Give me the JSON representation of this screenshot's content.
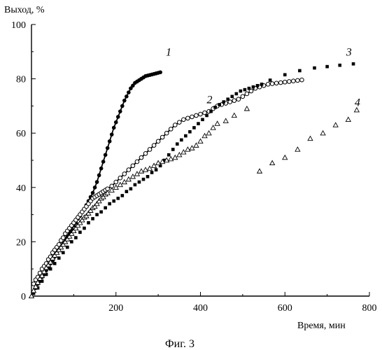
{
  "chart_data": {
    "type": "scatter",
    "title": "",
    "ylabel": "Выход, %",
    "xlabel": "Время, мин",
    "caption": "Фиг. 3",
    "xlim": [
      0,
      800
    ],
    "ylim": [
      0,
      100
    ],
    "x_ticks": [
      "200",
      "400",
      "600",
      "800"
    ],
    "y_ticks": [
      "0",
      "20",
      "40",
      "60",
      "80",
      "100"
    ],
    "grid": false,
    "series": [
      {
        "label_text": "1",
        "marker": "filled-circle",
        "color": "#000000",
        "x": [
          5,
          10,
          15,
          20,
          25,
          30,
          35,
          40,
          45,
          50,
          55,
          60,
          65,
          70,
          75,
          80,
          85,
          90,
          95,
          100,
          105,
          110,
          115,
          120,
          125,
          130,
          135,
          140,
          145,
          150,
          155,
          160,
          165,
          170,
          175,
          180,
          185,
          190,
          195,
          200,
          205,
          210,
          215,
          220,
          225,
          230,
          235,
          240,
          245,
          250,
          255,
          260,
          265,
          270,
          275,
          280,
          285,
          290,
          295,
          300,
          305
        ],
        "y": [
          1.5,
          3,
          4.5,
          5.5,
          7,
          8,
          9.5,
          10.5,
          12,
          13,
          14.5,
          16,
          17,
          18.5,
          19.5,
          21,
          22,
          23.5,
          24.5,
          26,
          27,
          28.5,
          29.5,
          31,
          32,
          33.5,
          35,
          36.5,
          38,
          40,
          42,
          44.5,
          47,
          49.5,
          52,
          54.5,
          57,
          59.5,
          62,
          64,
          66,
          68,
          70,
          72,
          73.5,
          75,
          76.5,
          77.5,
          78.5,
          79,
          79.5,
          80,
          80.5,
          81,
          81.2,
          81.4,
          81.6,
          81.8,
          82,
          82.2,
          82.4
        ]
      },
      {
        "label_text": "2",
        "marker": "open-circle",
        "color": "#000000",
        "x": [
          5,
          10,
          15,
          20,
          25,
          30,
          35,
          40,
          45,
          50,
          55,
          60,
          65,
          70,
          75,
          80,
          85,
          90,
          95,
          100,
          105,
          110,
          115,
          120,
          125,
          130,
          135,
          140,
          145,
          150,
          155,
          160,
          165,
          170,
          175,
          180,
          190,
          200,
          210,
          220,
          230,
          240,
          250,
          260,
          270,
          280,
          290,
          300,
          310,
          320,
          330,
          340,
          350,
          360,
          370,
          380,
          390,
          400,
          410,
          420,
          430,
          440,
          450,
          460,
          470,
          480,
          490,
          500,
          510,
          520,
          530,
          540,
          550,
          560,
          570,
          580,
          590,
          600,
          610,
          620,
          630,
          640
        ],
        "y": [
          4.5,
          6,
          7,
          8.5,
          10,
          11,
          12,
          13.5,
          14.5,
          16,
          17,
          18,
          19,
          20.5,
          21.5,
          23,
          24,
          25,
          26,
          27,
          28,
          29,
          30,
          31,
          32,
          33,
          34,
          35,
          36,
          36.5,
          37,
          37.5,
          38,
          38.5,
          39,
          39.5,
          40.5,
          42,
          43.5,
          45,
          46.5,
          48,
          49.5,
          51,
          52.5,
          54,
          55.5,
          57,
          58.5,
          60,
          61.5,
          63,
          64,
          65,
          65.5,
          66,
          66.5,
          67,
          67.5,
          68,
          69,
          70,
          70.5,
          71,
          71.5,
          72,
          72.5,
          73.5,
          74.5,
          75.5,
          76.5,
          77,
          77.5,
          78,
          78.2,
          78.4,
          78.6,
          78.8,
          79,
          79.2,
          79.4,
          79.6
        ]
      },
      {
        "label_text": "3",
        "marker": "filled-square",
        "color": "#000000",
        "x": [
          5,
          15,
          25,
          35,
          45,
          55,
          65,
          75,
          85,
          95,
          105,
          115,
          125,
          135,
          145,
          155,
          165,
          175,
          185,
          195,
          205,
          215,
          225,
          235,
          245,
          255,
          265,
          275,
          285,
          295,
          305,
          315,
          325,
          335,
          345,
          355,
          365,
          375,
          385,
          395,
          405,
          415,
          425,
          435,
          445,
          455,
          465,
          475,
          485,
          495,
          505,
          515,
          525,
          535,
          545,
          565,
          600,
          635,
          670,
          700,
          730,
          762
        ],
        "y": [
          1,
          3,
          5.5,
          8,
          10,
          12,
          14,
          16,
          18,
          20,
          21.5,
          23.5,
          25,
          27,
          28.5,
          30,
          31,
          32.5,
          34,
          35,
          36,
          37,
          38.5,
          39.5,
          41,
          42,
          43,
          44,
          45.5,
          46.5,
          48,
          50,
          52,
          54,
          56,
          57.5,
          59,
          60.5,
          62,
          63.5,
          65,
          66.5,
          68,
          69.5,
          70.5,
          71.5,
          72.5,
          73.5,
          74.5,
          75.5,
          76,
          76.5,
          77,
          77.5,
          78,
          79.5,
          81.5,
          83,
          84,
          84.5,
          85,
          85.5
        ]
      },
      {
        "label_text": "4",
        "marker": "open-triangle",
        "color": "#000000",
        "x": [
          0,
          5,
          10,
          15,
          20,
          25,
          30,
          35,
          40,
          45,
          50,
          55,
          60,
          65,
          70,
          75,
          80,
          85,
          90,
          95,
          100,
          105,
          110,
          115,
          120,
          125,
          130,
          135,
          140,
          145,
          150,
          155,
          160,
          165,
          170,
          175,
          180,
          190,
          200,
          210,
          220,
          230,
          240,
          250,
          260,
          270,
          280,
          290,
          300,
          310,
          320,
          330,
          340,
          350,
          360,
          370,
          380,
          390,
          400,
          410,
          420,
          430,
          440,
          460,
          480,
          510,
          540,
          570,
          600,
          630,
          660,
          690,
          720,
          750,
          770
        ],
        "y": [
          0,
          2,
          3.5,
          5,
          6.5,
          7.5,
          9,
          10.5,
          11.5,
          12.5,
          14,
          15,
          16,
          17,
          18,
          19,
          20,
          21,
          22,
          23,
          24,
          25,
          26,
          27,
          28,
          29,
          29.5,
          30.5,
          31.5,
          32.5,
          33,
          34,
          35,
          36,
          36.5,
          37.5,
          38,
          39,
          40,
          41,
          42,
          43,
          44,
          45,
          46,
          46.5,
          47,
          48,
          49,
          49.5,
          50,
          50.5,
          51,
          52,
          53,
          54,
          54.5,
          55.5,
          57,
          59,
          60,
          62,
          63.5,
          64.5,
          66.5,
          69,
          46,
          49,
          51,
          54,
          58,
          60,
          63,
          65,
          68.5
        ]
      }
    ]
  }
}
